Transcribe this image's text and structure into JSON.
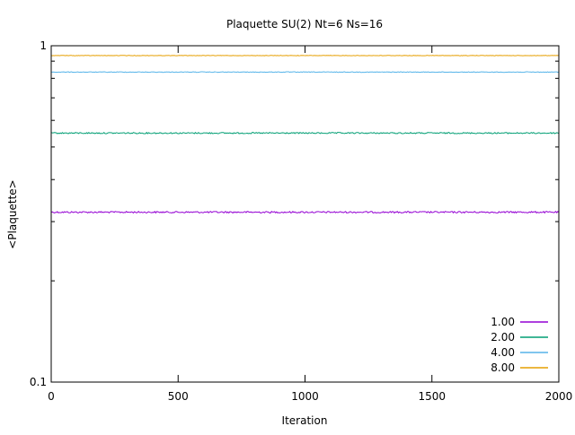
{
  "chart_data": {
    "type": "line",
    "title": "Plaquette SU(2) Nt=6 Ns=16",
    "xlabel": "Iteration",
    "ylabel": "<Plaquette>",
    "xlim": [
      0,
      2000
    ],
    "ylim": [
      0.1,
      1
    ],
    "yscale": "log",
    "grid": false,
    "legend_position": "bottom-right",
    "x_ticks": [
      {
        "value": 0,
        "label": "0"
      },
      {
        "value": 500,
        "label": "500"
      },
      {
        "value": 1000,
        "label": "1000"
      },
      {
        "value": 1500,
        "label": "1500"
      },
      {
        "value": 2000,
        "label": "2000"
      }
    ],
    "y_ticks": [
      {
        "value": 0.1,
        "label": "0.1"
      },
      {
        "value": 1,
        "label": "1"
      }
    ],
    "series": [
      {
        "name": "1.00",
        "color": "#9400d3",
        "x": [
          0,
          2000
        ],
        "y": [
          0.32,
          0.32
        ]
      },
      {
        "name": "2.00",
        "color": "#009e73",
        "x": [
          0,
          2000
        ],
        "y": [
          0.55,
          0.55
        ]
      },
      {
        "name": "4.00",
        "color": "#56b4e9",
        "x": [
          0,
          2000
        ],
        "y": [
          0.835,
          0.835
        ]
      },
      {
        "name": "8.00",
        "color": "#e69f00",
        "x": [
          0,
          2000
        ],
        "y": [
          0.935,
          0.935
        ]
      }
    ]
  }
}
